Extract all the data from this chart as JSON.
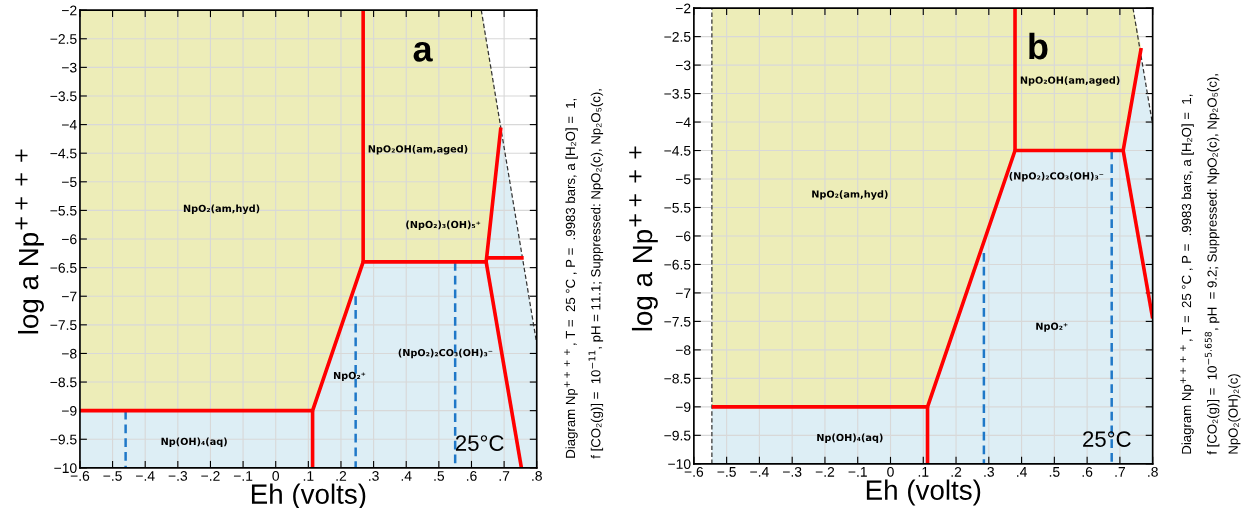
{
  "chart_data": [
    {
      "type": "line",
      "title": "a",
      "xlabel": "Eh (volts)",
      "ylabel": "log a Np$^{++++}$",
      "xlim": [
        -0.6,
        0.8
      ],
      "ylim": [
        -10,
        -2
      ],
      "xticks": [
        {
          "value": -0.6,
          "label": "−.6"
        },
        {
          "value": -0.5,
          "label": "−.5"
        },
        {
          "value": -0.4,
          "label": "−.4"
        },
        {
          "value": -0.3,
          "label": "−.3"
        },
        {
          "value": -0.2,
          "label": "−.2"
        },
        {
          "value": -0.1,
          "label": "−.1"
        },
        0,
        {
          "value": 0.1,
          "label": ".1"
        },
        {
          "value": 0.2,
          "label": ".2"
        },
        {
          "value": 0.3,
          "label": ".3"
        },
        {
          "value": 0.4,
          "label": ".4"
        },
        {
          "value": 0.5,
          "label": ".5"
        },
        {
          "value": 0.6,
          "label": ".6"
        },
        {
          "value": 0.7,
          "label": ".7"
        },
        {
          "value": 0.8,
          "label": ".8"
        }
      ],
      "yticks": [
        {
          "value": -10,
          "label": "−10"
        },
        {
          "value": -9.5,
          "label": "−9.5"
        },
        {
          "value": -9,
          "label": "−9"
        },
        {
          "value": -8.5,
          "label": "−8.5"
        },
        {
          "value": -8,
          "label": "−8"
        },
        {
          "value": -7.5,
          "label": "−7.5"
        },
        {
          "value": -7,
          "label": "−7"
        },
        {
          "value": -6.5,
          "label": "−6.5"
        },
        {
          "value": -6,
          "label": "−6"
        },
        {
          "value": -5.5,
          "label": "−5.5"
        },
        {
          "value": -5,
          "label": "−5"
        },
        {
          "value": -4.5,
          "label": "−4.5"
        },
        {
          "value": -4,
          "label": "−4"
        },
        {
          "value": -3.5,
          "label": "−3.5"
        },
        {
          "value": -3,
          "label": "−3"
        },
        {
          "value": -2.5,
          "label": "−2.5"
        },
        {
          "value": -2,
          "label": "−2"
        }
      ],
      "grid": true,
      "series": [
        {
          "color": "#333333",
          "line_style": "dashed",
          "x": [
            0.63,
            0.8
          ],
          "values": [
            -2,
            -7.83
          ]
        },
        {
          "color": "#1f78c8",
          "line_style": "dashed",
          "x": [
            -0.46,
            -0.46
          ],
          "values": [
            -9,
            -10
          ]
        },
        {
          "color": "#1f78c8",
          "line_style": "dashed",
          "x": [
            0.245,
            0.245
          ],
          "values": [
            -7,
            -10
          ]
        },
        {
          "color": "#1f78c8",
          "line_style": "dashed",
          "x": [
            0.55,
            0.55
          ],
          "values": [
            -6.4,
            -10
          ]
        },
        {
          "color": "#ff0000",
          "x": [
            -0.6,
            0.113,
            0.268,
            0.645,
            0.69
          ],
          "values": [
            -9,
            -9,
            -6.4,
            -6.4,
            -4.05
          ]
        },
        {
          "color": "#ff0000",
          "x": [
            0.113,
            0.113
          ],
          "values": [
            -10,
            -9
          ]
        },
        {
          "color": "#ff0000",
          "x": [
            0.268,
            0.268
          ],
          "values": [
            -6.4,
            -2
          ]
        },
        {
          "color": "#ff0000",
          "x": [
            0.65,
            0.76
          ],
          "values": [
            -6.33,
            -6.33
          ]
        },
        {
          "color": "#ff0000",
          "x": [
            0.645,
            0.753
          ],
          "values": [
            -6.4,
            -10
          ]
        }
      ],
      "annotations": [
        "NpO₂(am,hyd)",
        "NpO₂OH(am,aged)",
        "(NpO₂)₃(OH)₅⁺",
        "(NpO₂)₂CO₃(OH)₃⁻",
        "NpO₂⁺",
        "Np(OH)₄(aq)",
        "25°C",
        "Diagram Np$^{++++}$, T =  25 °C , P =  .9983 bars, a [H₂O] =  1,\nf [CO₂(g)] =  10$^{−11}$, pH = 11.1; Suppressed: NpO₂(c), Np₂O₅(c),"
      ]
    },
    {
      "type": "line",
      "title": "b",
      "xlabel": "Eh (volts)",
      "ylabel": "log a Np$^{++++}$",
      "xlim": [
        -0.6,
        0.8
      ],
      "ylim": [
        -10,
        -2
      ],
      "xticks": [
        {
          "value": -0.6,
          "label": "−.6"
        },
        {
          "value": -0.5,
          "label": "−.5"
        },
        {
          "value": -0.4,
          "label": "−.4"
        },
        {
          "value": -0.3,
          "label": "−.3"
        },
        {
          "value": -0.2,
          "label": "−.2"
        },
        {
          "value": -0.1,
          "label": "−.1"
        },
        0,
        {
          "value": 0.1,
          "label": ".1"
        },
        {
          "value": 0.2,
          "label": ".2"
        },
        {
          "value": 0.3,
          "label": ".3"
        },
        {
          "value": 0.4,
          "label": ".4"
        },
        {
          "value": 0.5,
          "label": ".5"
        },
        {
          "value": 0.6,
          "label": ".6"
        },
        {
          "value": 0.7,
          "label": ".7"
        },
        {
          "value": 0.8,
          "label": ".8"
        }
      ],
      "yticks": [
        {
          "value": -10,
          "label": "−10"
        },
        {
          "value": -9.5,
          "label": "−9.5"
        },
        {
          "value": -9,
          "label": "−9"
        },
        {
          "value": -8.5,
          "label": "−8.5"
        },
        {
          "value": -8,
          "label": "−8"
        },
        {
          "value": -7.5,
          "label": "−7.5"
        },
        {
          "value": -7,
          "label": "−7"
        },
        {
          "value": -6.5,
          "label": "−6.5"
        },
        {
          "value": -6,
          "label": "−6"
        },
        {
          "value": -5.5,
          "label": "−5.5"
        },
        {
          "value": -5,
          "label": "−5"
        },
        {
          "value": -4.5,
          "label": "−4.5"
        },
        {
          "value": -4,
          "label": "−4"
        },
        {
          "value": -3.5,
          "label": "−3.5"
        },
        {
          "value": -3,
          "label": "−3"
        },
        {
          "value": -2.5,
          "label": "−2.5"
        },
        {
          "value": -2,
          "label": "−2"
        }
      ],
      "grid": true,
      "series": [
        {
          "color": "#333333",
          "line_style": "dashed",
          "x": [
            -0.545,
            -0.545
          ],
          "values": [
            -10,
            -2
          ]
        },
        {
          "color": "#333333",
          "line_style": "dashed",
          "x": [
            0.74,
            0.8
          ],
          "values": [
            -2,
            -4.05
          ]
        },
        {
          "color": "#1f78c8",
          "line_style": "dashed",
          "x": [
            0.285,
            0.285
          ],
          "values": [
            -6.3,
            -10
          ]
        },
        {
          "color": "#1f78c8",
          "line_style": "dashed",
          "x": [
            0.675,
            0.675
          ],
          "values": [
            -4.5,
            -10
          ]
        },
        {
          "color": "#ff0000",
          "x": [
            -0.545,
            0.113,
            0.38,
            0.71,
            0.765
          ],
          "values": [
            -9,
            -9,
            -4.5,
            -4.5,
            -2.7
          ]
        },
        {
          "color": "#ff0000",
          "x": [
            0.113,
            0.113
          ],
          "values": [
            -10,
            -9
          ]
        },
        {
          "color": "#ff0000",
          "x": [
            0.38,
            0.38
          ],
          "values": [
            -4.5,
            -2
          ]
        },
        {
          "color": "#ff0000",
          "x": [
            0.71,
            0.8
          ],
          "values": [
            -4.5,
            -7.45
          ]
        }
      ],
      "bands": [
        {
          "axis": "x",
          "from": -0.6,
          "to": -0.545,
          "color": "#ffffff"
        }
      ],
      "annotations": [
        "NpO₂OH(am,aged)",
        "NpO₂(am,hyd)",
        "(NpO₂)₂CO₃(OH)₃⁻",
        "NpO₂⁺",
        "Np(OH)₄(aq)",
        "25°C",
        "Diagram Np$^{++++}$, T =  25 °C , P =  .9983 bars, a [H₂O] =  1,\nf [CO₂(g)] =  10$^{−5.658}$, pH  = 9.2; Suppressed: NpO₂(c), Np₂O₅(c),\nNpO₂(OH)₂(c)"
      ]
    }
  ]
}
